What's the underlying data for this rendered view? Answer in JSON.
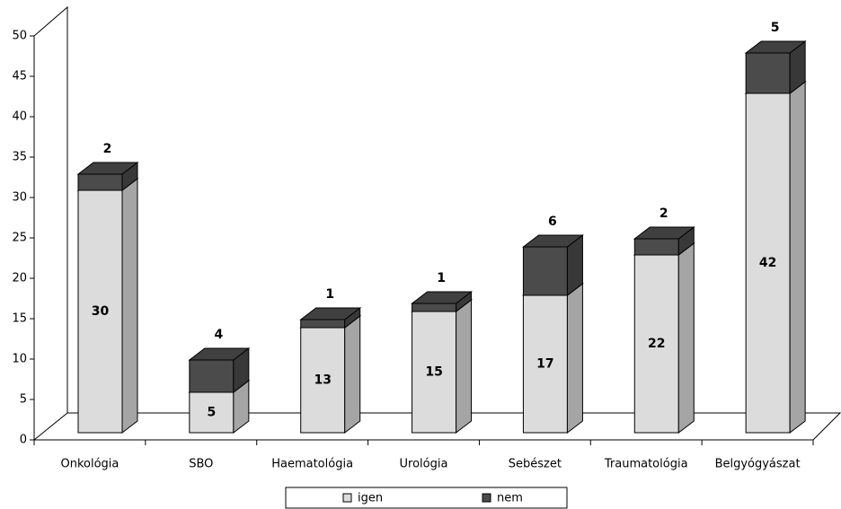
{
  "chart_data": {
    "type": "bar3d_stacked",
    "categories": [
      "Onkológia",
      "SBO",
      "Haematológia",
      "Urológia",
      "Sebészet",
      "Traumatológia",
      "Belgyógyászat"
    ],
    "series": [
      {
        "name": "igen",
        "color": "#dcdcdc",
        "values": [
          30,
          5,
          13,
          15,
          17,
          22,
          42
        ]
      },
      {
        "name": "nem",
        "color": "#4b4b4b",
        "values": [
          2,
          4,
          1,
          1,
          6,
          2,
          5
        ]
      }
    ],
    "ylim": [
      0,
      50
    ],
    "yticks": [
      0,
      5,
      10,
      15,
      20,
      25,
      30,
      35,
      40,
      45,
      50
    ]
  }
}
